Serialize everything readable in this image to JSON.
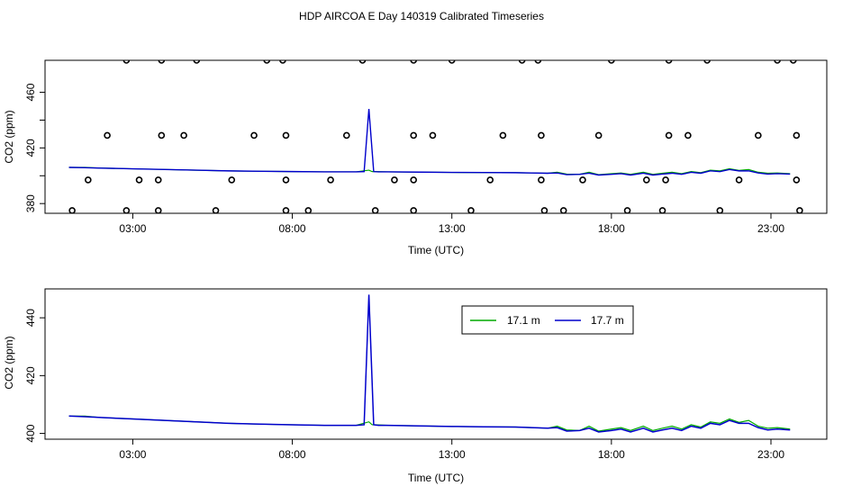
{
  "figure": {
    "title": "HDP AIRCOA E  Day 140319  Calibrated Timeseries"
  },
  "chart_data": [
    {
      "type": "scatter+line",
      "title": "",
      "xlabel": "Time (UTC)",
      "ylabel": "CO2 (ppm)",
      "xlim": [
        0.25,
        24.75
      ],
      "ylim": [
        373,
        483
      ],
      "xticks": [
        3,
        8,
        13,
        18,
        23
      ],
      "xtick_labels": [
        "03:00",
        "08:00",
        "13:00",
        "18:00",
        "23:00"
      ],
      "yticks": [
        380,
        400,
        420,
        440,
        460
      ],
      "ytick_labels": [
        "380",
        "",
        "420",
        "",
        "460"
      ],
      "line_color": "#0000cc",
      "line_color_2": "#00aa00",
      "points": [
        [
          1.1,
          375
        ],
        [
          2.8,
          375
        ],
        [
          3.8,
          375
        ],
        [
          5.6,
          375
        ],
        [
          7.8,
          375
        ],
        [
          8.5,
          375
        ],
        [
          10.6,
          375
        ],
        [
          11.8,
          375
        ],
        [
          13.6,
          375
        ],
        [
          15.9,
          375
        ],
        [
          16.5,
          375
        ],
        [
          18.5,
          375
        ],
        [
          19.6,
          375
        ],
        [
          21.4,
          375
        ],
        [
          23.9,
          375
        ],
        [
          1.6,
          397
        ],
        [
          3.2,
          397
        ],
        [
          3.8,
          397
        ],
        [
          6.1,
          397
        ],
        [
          7.8,
          397
        ],
        [
          9.2,
          397
        ],
        [
          11.2,
          397
        ],
        [
          11.8,
          397
        ],
        [
          14.2,
          397
        ],
        [
          15.8,
          397
        ],
        [
          17.1,
          397
        ],
        [
          19.1,
          397
        ],
        [
          19.7,
          397
        ],
        [
          22.0,
          397
        ],
        [
          23.8,
          397
        ],
        [
          2.2,
          429
        ],
        [
          3.9,
          429
        ],
        [
          4.6,
          429
        ],
        [
          6.8,
          429
        ],
        [
          7.8,
          429
        ],
        [
          9.7,
          429
        ],
        [
          11.8,
          429
        ],
        [
          12.4,
          429
        ],
        [
          14.6,
          429
        ],
        [
          15.8,
          429
        ],
        [
          17.6,
          429
        ],
        [
          19.8,
          429
        ],
        [
          20.4,
          429
        ],
        [
          22.6,
          429
        ],
        [
          23.8,
          429
        ],
        [
          2.8,
          483
        ],
        [
          3.9,
          483
        ],
        [
          5.0,
          483
        ],
        [
          7.2,
          483
        ],
        [
          7.7,
          483
        ],
        [
          10.2,
          483
        ],
        [
          11.8,
          483
        ],
        [
          13.0,
          483
        ],
        [
          15.2,
          483
        ],
        [
          15.7,
          483
        ],
        [
          18.0,
          483
        ],
        [
          19.8,
          483
        ],
        [
          21.0,
          483
        ],
        [
          23.2,
          483
        ],
        [
          23.7,
          483
        ]
      ]
    },
    {
      "type": "line",
      "title": "",
      "xlabel": "Time (UTC)",
      "ylabel": "CO2 (ppm)",
      "xlim": [
        0.25,
        24.75
      ],
      "ylim": [
        398,
        450
      ],
      "xticks": [
        3,
        8,
        13,
        18,
        23
      ],
      "xtick_labels": [
        "03:00",
        "08:00",
        "13:00",
        "18:00",
        "23:00"
      ],
      "yticks": [
        400,
        420,
        440
      ],
      "ytick_labels": [
        "400",
        "420",
        "440"
      ],
      "legend": {
        "placement": "top-center"
      },
      "series": [
        {
          "name": "17.1 m",
          "color": "#00aa00",
          "x": [
            1.0,
            1.5,
            2.0,
            3.0,
            4.0,
            5.0,
            6.0,
            7.0,
            8.0,
            9.0,
            10.0,
            10.4,
            10.5,
            10.6,
            11.0,
            12.0,
            13.0,
            14.0,
            15.0,
            15.5,
            16.0,
            16.3,
            16.6,
            17.0,
            17.3,
            17.6,
            18.0,
            18.3,
            18.6,
            19.0,
            19.3,
            19.6,
            19.9,
            20.2,
            20.5,
            20.8,
            21.1,
            21.4,
            21.7,
            22.0,
            22.3,
            22.6,
            22.9,
            23.2,
            23.6
          ],
          "values": [
            406,
            406,
            405.5,
            405,
            404.5,
            404,
            403.5,
            403.2,
            403,
            402.8,
            402.8,
            404,
            403,
            403,
            402.8,
            402.6,
            402.4,
            402.3,
            402.2,
            402,
            401.8,
            402.5,
            401.2,
            401,
            402.5,
            400.8,
            401.5,
            402,
            401,
            402.5,
            401,
            401.8,
            402.5,
            401.5,
            403,
            402.2,
            404,
            403.5,
            405,
            403.8,
            404.5,
            402.5,
            401.8,
            402,
            401.5
          ]
        },
        {
          "name": "17.7 m",
          "color": "#0000cc",
          "x": [
            1.0,
            1.5,
            2.0,
            3.0,
            4.0,
            5.0,
            6.0,
            7.0,
            8.0,
            9.0,
            10.0,
            10.25,
            10.4,
            10.55,
            10.7,
            11.0,
            12.0,
            13.0,
            14.0,
            15.0,
            15.5,
            16.0,
            16.3,
            16.6,
            17.0,
            17.3,
            17.6,
            18.0,
            18.3,
            18.6,
            19.0,
            19.3,
            19.6,
            19.9,
            20.2,
            20.5,
            20.8,
            21.1,
            21.4,
            21.7,
            22.0,
            22.3,
            22.6,
            22.9,
            23.2,
            23.6
          ],
          "values": [
            406,
            405.8,
            405.5,
            405,
            404.5,
            404,
            403.5,
            403.2,
            403,
            402.8,
            402.8,
            403,
            448,
            403,
            402.8,
            402.8,
            402.6,
            402.4,
            402.3,
            402.2,
            402,
            401.8,
            402,
            400.8,
            401,
            401.8,
            400.5,
            401,
            401.5,
            400.5,
            401.8,
            400.5,
            401.2,
            401.8,
            401,
            402.5,
            401.8,
            403.5,
            403,
            404.5,
            403.5,
            403.5,
            402,
            401.2,
            401.5,
            401.2
          ]
        }
      ]
    }
  ]
}
